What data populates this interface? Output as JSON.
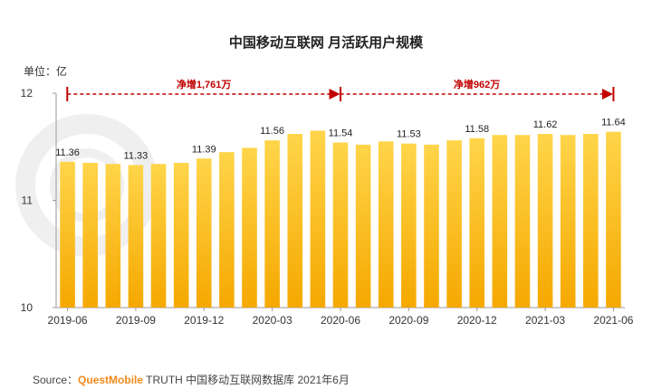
{
  "chart_data": {
    "type": "bar",
    "title": "中国移动互联网 月活跃用户规模",
    "unit": "单位：亿",
    "ylim": [
      10,
      12
    ],
    "yticks": [
      10,
      11,
      12
    ],
    "grid": false,
    "xtick_labels": [
      {
        "index": 0,
        "label": "2019-06"
      },
      {
        "index": 3,
        "label": "2019-09"
      },
      {
        "index": 6,
        "label": "2019-12"
      },
      {
        "index": 9,
        "label": "2020-03"
      },
      {
        "index": 12,
        "label": "2020-06"
      },
      {
        "index": 15,
        "label": "2020-09"
      },
      {
        "index": 18,
        "label": "2020-12"
      },
      {
        "index": 21,
        "label": "2021-03"
      },
      {
        "index": 24,
        "label": "2021-06"
      }
    ],
    "values": [
      11.36,
      11.35,
      11.34,
      11.33,
      11.34,
      11.35,
      11.39,
      11.45,
      11.49,
      11.56,
      11.62,
      11.65,
      11.54,
      11.52,
      11.55,
      11.53,
      11.52,
      11.56,
      11.58,
      11.61,
      11.61,
      11.62,
      11.61,
      11.62,
      11.64
    ],
    "data_labels": [
      {
        "index": 0,
        "text": "11.36"
      },
      {
        "index": 3,
        "text": "11.33"
      },
      {
        "index": 6,
        "text": "11.39"
      },
      {
        "index": 9,
        "text": "11.56"
      },
      {
        "index": 12,
        "text": "11.54"
      },
      {
        "index": 15,
        "text": "11.53"
      },
      {
        "index": 18,
        "text": "11.58"
      },
      {
        "index": 21,
        "text": "11.62"
      },
      {
        "index": 24,
        "text": "11.64"
      }
    ],
    "annotations": [
      {
        "from_index": 0,
        "to_index": 12,
        "text": "净增1,761万"
      },
      {
        "from_index": 12,
        "to_index": 24,
        "text": "净增962万"
      }
    ],
    "colors": {
      "bar_top": "#ffd54a",
      "bar_bottom": "#f5a800",
      "annotation": "#c00000",
      "axis": "#999999"
    }
  },
  "source": {
    "prefix": "Source：",
    "brand": "QuestMobile",
    "suffix": " TRUTH 中国移动互联网数据库 2021年6月"
  }
}
